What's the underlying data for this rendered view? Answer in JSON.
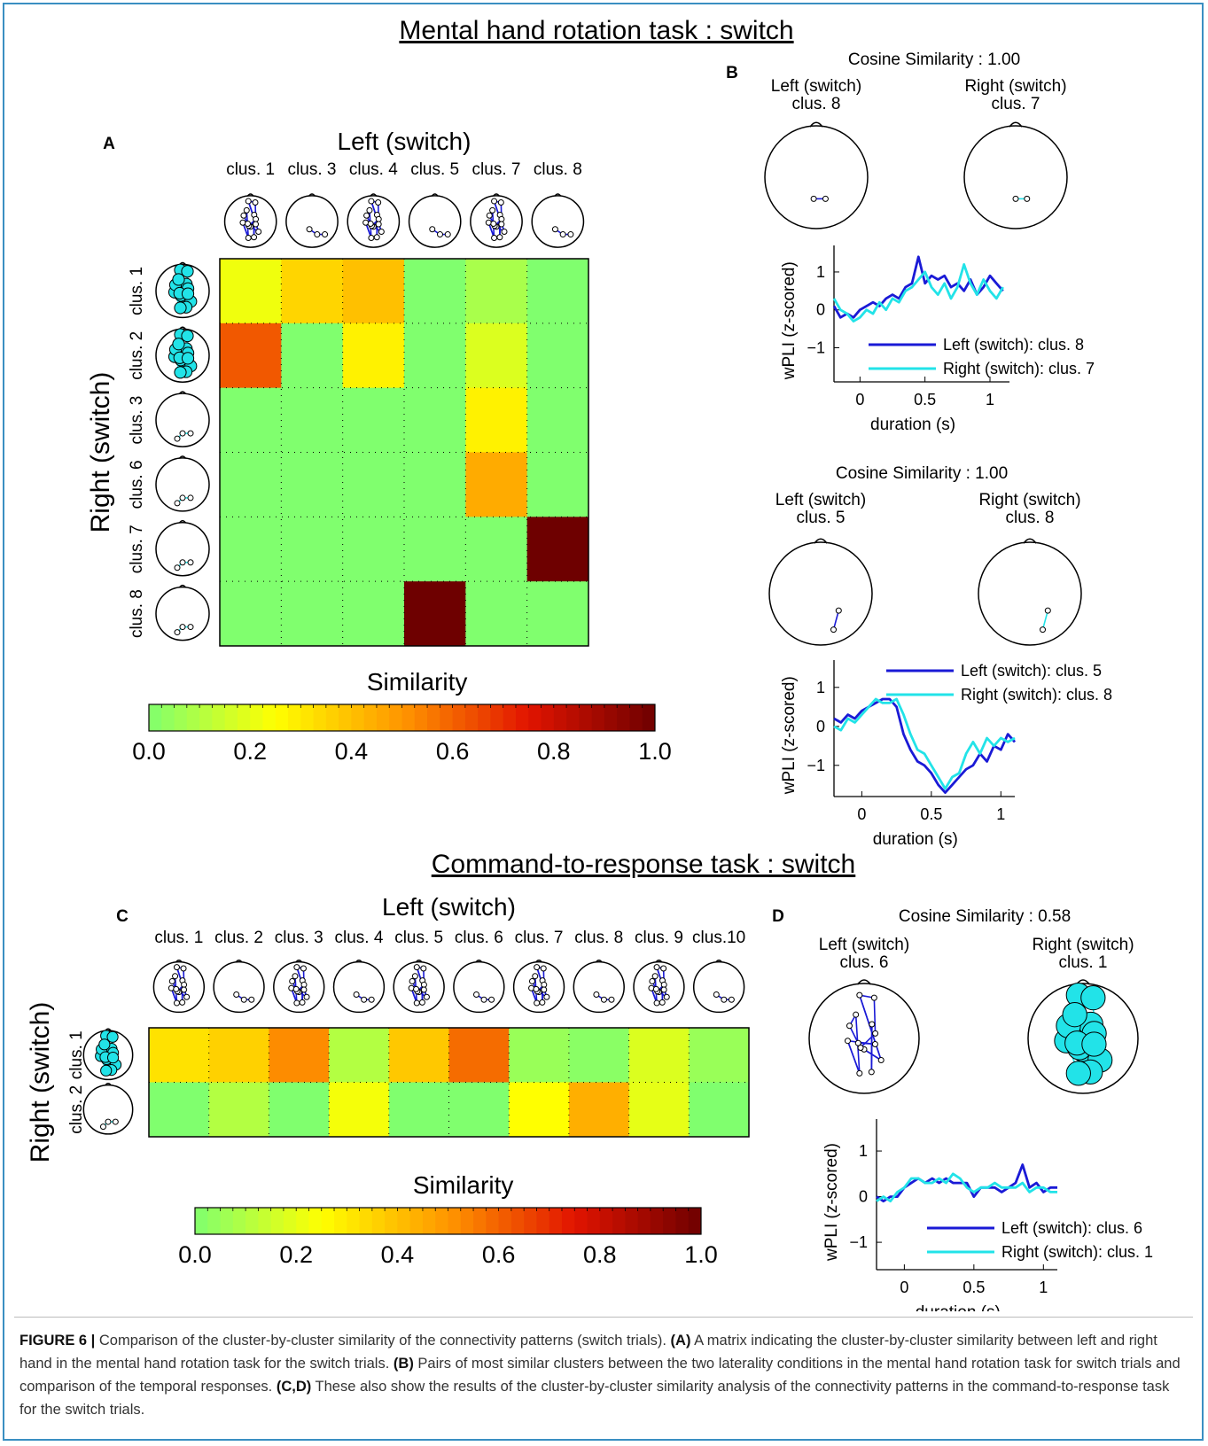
{
  "caption": {
    "label": "FIGURE 6 |",
    "intro": "Comparison of the cluster-by-cluster similarity of the connectivity patterns (switch trials).",
    "a_ref": "(A)",
    "a_text": "A matrix indicating the cluster-by-cluster similarity between left and right hand in the mental hand rotation task for the switch trials.",
    "b_ref": "(B)",
    "b_text": "Pairs of most similar clusters between the two laterality conditions in the mental hand rotation task for switch trials and comparison of the temporal responses.",
    "cd_ref": "(C,D)",
    "cd_text": "These also show the results of the cluster-by-cluster similarity analysis of the connectivity patterns in the command-to-response task for the switch trials."
  },
  "colors": {
    "left_series": "#1a1ad6",
    "right_series": "#22e3e8",
    "title_color": "#000000"
  },
  "chart_data": [
    {
      "panel": "A",
      "type": "heatmap",
      "section_title": "Mental hand rotation task : switch",
      "title": "Left (switch)",
      "ylabel": "Right (switch)",
      "columns": [
        "clus. 1",
        "clus. 3",
        "clus. 4",
        "clus. 5",
        "clus. 7",
        "clus. 8"
      ],
      "rows": [
        "clus. 1",
        "clus. 2",
        "clus. 3",
        "clus. 6",
        "clus. 7",
        "clus. 8"
      ],
      "values": [
        [
          0.22,
          0.35,
          0.4,
          0.0,
          0.08,
          0.0
        ],
        [
          0.62,
          0.0,
          0.28,
          0.0,
          0.18,
          0.0
        ],
        [
          0.0,
          0.0,
          0.0,
          0.0,
          0.28,
          0.0
        ],
        [
          0.0,
          0.0,
          0.0,
          0.0,
          0.45,
          0.0
        ],
        [
          0.0,
          0.0,
          0.0,
          0.0,
          0.0,
          1.0
        ],
        [
          0.0,
          0.0,
          0.0,
          1.0,
          0.0,
          0.0
        ]
      ],
      "colorbar_title": "Similarity",
      "colorbar_ticks": [
        "0.0",
        "0.2",
        "0.4",
        "0.6",
        "0.8",
        "1.0"
      ],
      "zlim": [
        0,
        1
      ]
    },
    {
      "panel": "B1",
      "type": "line",
      "cosine_label": "Cosine Similarity : 1.00",
      "head_left_title": "Left (switch)",
      "head_left_sub": "clus. 8",
      "head_right_title": "Right (switch)",
      "head_right_sub": "clus. 7",
      "xlabel": "duration (s)",
      "ylabel": "wPLI (z-scored)",
      "xlim": [
        -0.2,
        1.15
      ],
      "ylim": [
        -1.9,
        1.7
      ],
      "xticks": [
        "0",
        "0.5",
        "1"
      ],
      "yticks": [
        "1",
        "0",
        "−1"
      ],
      "legend": [
        "Left   (switch): clus. 8",
        "Right (switch): clus. 7"
      ],
      "series": [
        {
          "x": [
            -0.2,
            -0.15,
            -0.1,
            -0.05,
            0,
            0.05,
            0.1,
            0.15,
            0.2,
            0.25,
            0.3,
            0.35,
            0.4,
            0.45,
            0.5,
            0.55,
            0.6,
            0.65,
            0.7,
            0.75,
            0.8,
            0.85,
            0.9,
            0.95,
            1.0,
            1.05,
            1.1
          ],
          "y": [
            0.1,
            -0.2,
            -0.1,
            -0.2,
            0.0,
            0.1,
            0.2,
            0.1,
            0.3,
            0.4,
            0.3,
            0.6,
            0.7,
            1.4,
            0.7,
            0.9,
            0.8,
            0.9,
            0.6,
            0.7,
            0.5,
            0.8,
            0.4,
            0.6,
            0.9,
            0.7,
            0.5
          ]
        },
        {
          "x": [
            -0.2,
            -0.15,
            -0.1,
            -0.05,
            0,
            0.05,
            0.1,
            0.15,
            0.2,
            0.25,
            0.3,
            0.35,
            0.4,
            0.45,
            0.5,
            0.55,
            0.6,
            0.65,
            0.7,
            0.75,
            0.8,
            0.85,
            0.9,
            0.95,
            1.0,
            1.05,
            1.1
          ],
          "y": [
            0.3,
            0.0,
            -0.1,
            -0.3,
            -0.2,
            0.0,
            -0.1,
            0.2,
            0.0,
            0.3,
            0.2,
            0.5,
            0.6,
            0.8,
            1.0,
            0.6,
            0.4,
            0.7,
            0.3,
            0.6,
            1.2,
            0.7,
            0.4,
            0.8,
            0.5,
            0.3,
            0.6
          ]
        }
      ]
    },
    {
      "panel": "B2",
      "type": "line",
      "cosine_label": "Cosine Similarity : 1.00",
      "head_left_title": "Left (switch)",
      "head_left_sub": "clus. 5",
      "head_right_title": "Right (switch)",
      "head_right_sub": "clus. 8",
      "xlabel": "duration (s)",
      "ylabel": "wPLI (z-scored)",
      "xlim": [
        -0.2,
        1.1
      ],
      "ylim": [
        -1.8,
        1.7
      ],
      "xticks": [
        "0",
        "0.5",
        "1"
      ],
      "yticks": [
        "1",
        "0",
        "−1"
      ],
      "legend": [
        "Left   (switch): clus. 5",
        "Right (switch): clus. 8"
      ],
      "series": [
        {
          "x": [
            -0.2,
            -0.15,
            -0.1,
            -0.05,
            0,
            0.05,
            0.1,
            0.15,
            0.2,
            0.25,
            0.3,
            0.35,
            0.4,
            0.45,
            0.5,
            0.55,
            0.6,
            0.65,
            0.7,
            0.75,
            0.8,
            0.85,
            0.9,
            0.95,
            1.0,
            1.05,
            1.1
          ],
          "y": [
            0.2,
            0.1,
            0.3,
            0.2,
            0.4,
            0.5,
            0.6,
            0.7,
            0.7,
            0.5,
            -0.2,
            -0.6,
            -0.9,
            -1.0,
            -1.2,
            -1.5,
            -1.7,
            -1.5,
            -1.3,
            -1.1,
            -1.0,
            -0.7,
            -0.9,
            -0.5,
            -0.6,
            -0.2,
            -0.4
          ]
        },
        {
          "x": [
            -0.2,
            -0.15,
            -0.1,
            -0.05,
            0,
            0.05,
            0.1,
            0.15,
            0.2,
            0.25,
            0.3,
            0.35,
            0.4,
            0.45,
            0.5,
            0.55,
            0.6,
            0.65,
            0.7,
            0.75,
            0.8,
            0.85,
            0.9,
            0.95,
            1.0,
            1.05,
            1.1
          ],
          "y": [
            0.0,
            -0.1,
            0.2,
            0.1,
            0.3,
            0.5,
            0.7,
            0.6,
            0.6,
            0.7,
            0.3,
            -0.2,
            -0.6,
            -0.7,
            -1.0,
            -1.3,
            -1.6,
            -1.3,
            -1.2,
            -0.7,
            -0.4,
            -0.7,
            -0.3,
            -0.5,
            -0.3,
            -0.4,
            -0.3
          ]
        }
      ]
    },
    {
      "panel": "C",
      "type": "heatmap",
      "section_title": "Command-to-response task : switch",
      "title": "Left (switch)",
      "ylabel": "Right (switch)",
      "columns": [
        "clus. 1",
        "clus. 2",
        "clus. 3",
        "clus. 4",
        "clus. 5",
        "clus. 6",
        "clus. 7",
        "clus. 8",
        "clus. 9",
        "clus.10"
      ],
      "rows": [
        "clus. 1",
        "clus. 2"
      ],
      "values": [
        [
          0.32,
          0.36,
          0.52,
          0.1,
          0.38,
          0.58,
          0.05,
          0.02,
          0.18,
          0.05
        ],
        [
          0.0,
          0.1,
          0.0,
          0.23,
          0.0,
          0.0,
          0.25,
          0.44,
          0.2,
          0.0
        ]
      ],
      "colorbar_title": "Similarity",
      "colorbar_ticks": [
        "0.0",
        "0.2",
        "0.4",
        "0.6",
        "0.8",
        "1.0"
      ],
      "zlim": [
        0,
        1
      ]
    },
    {
      "panel": "D",
      "type": "line",
      "cosine_label": "Cosine Similarity : 0.58",
      "head_left_title": "Left (switch)",
      "head_left_sub": "clus. 6",
      "head_right_title": "Right (switch)",
      "head_right_sub": "clus. 1",
      "xlabel": "duration (s)",
      "ylabel": "wPLI (z-scored)",
      "xlim": [
        -0.2,
        1.1
      ],
      "ylim": [
        -1.6,
        1.7
      ],
      "xticks": [
        "0",
        "0.5",
        "1"
      ],
      "yticks": [
        "1",
        "0",
        "−1"
      ],
      "legend": [
        "Left   (switch): clus. 6",
        "Right (switch): clus. 1"
      ],
      "series": [
        {
          "x": [
            -0.2,
            -0.15,
            -0.1,
            -0.05,
            0,
            0.05,
            0.1,
            0.15,
            0.2,
            0.25,
            0.3,
            0.35,
            0.4,
            0.45,
            0.5,
            0.55,
            0.6,
            0.65,
            0.7,
            0.75,
            0.8,
            0.85,
            0.9,
            0.95,
            1.0,
            1.05,
            1.1
          ],
          "y": [
            0.0,
            -0.1,
            0.0,
            0.0,
            0.2,
            0.3,
            0.4,
            0.3,
            0.4,
            0.3,
            0.4,
            0.3,
            0.3,
            0.3,
            0.0,
            0.2,
            0.2,
            0.2,
            0.1,
            0.2,
            0.3,
            0.7,
            0.2,
            0.3,
            0.1,
            0.2,
            0.2
          ]
        },
        {
          "x": [
            -0.2,
            -0.15,
            -0.1,
            -0.05,
            0,
            0.05,
            0.1,
            0.15,
            0.2,
            0.25,
            0.3,
            0.35,
            0.4,
            0.45,
            0.5,
            0.55,
            0.6,
            0.65,
            0.7,
            0.75,
            0.8,
            0.85,
            0.9,
            0.95,
            1.0,
            1.05,
            1.1
          ],
          "y": [
            -0.1,
            0.0,
            -0.1,
            0.1,
            0.2,
            0.4,
            0.4,
            0.3,
            0.3,
            0.4,
            0.3,
            0.5,
            0.4,
            0.2,
            0.1,
            0.2,
            0.2,
            0.3,
            0.2,
            0.2,
            0.2,
            0.3,
            0.1,
            0.2,
            0.2,
            0.1,
            0.1
          ]
        }
      ]
    }
  ]
}
